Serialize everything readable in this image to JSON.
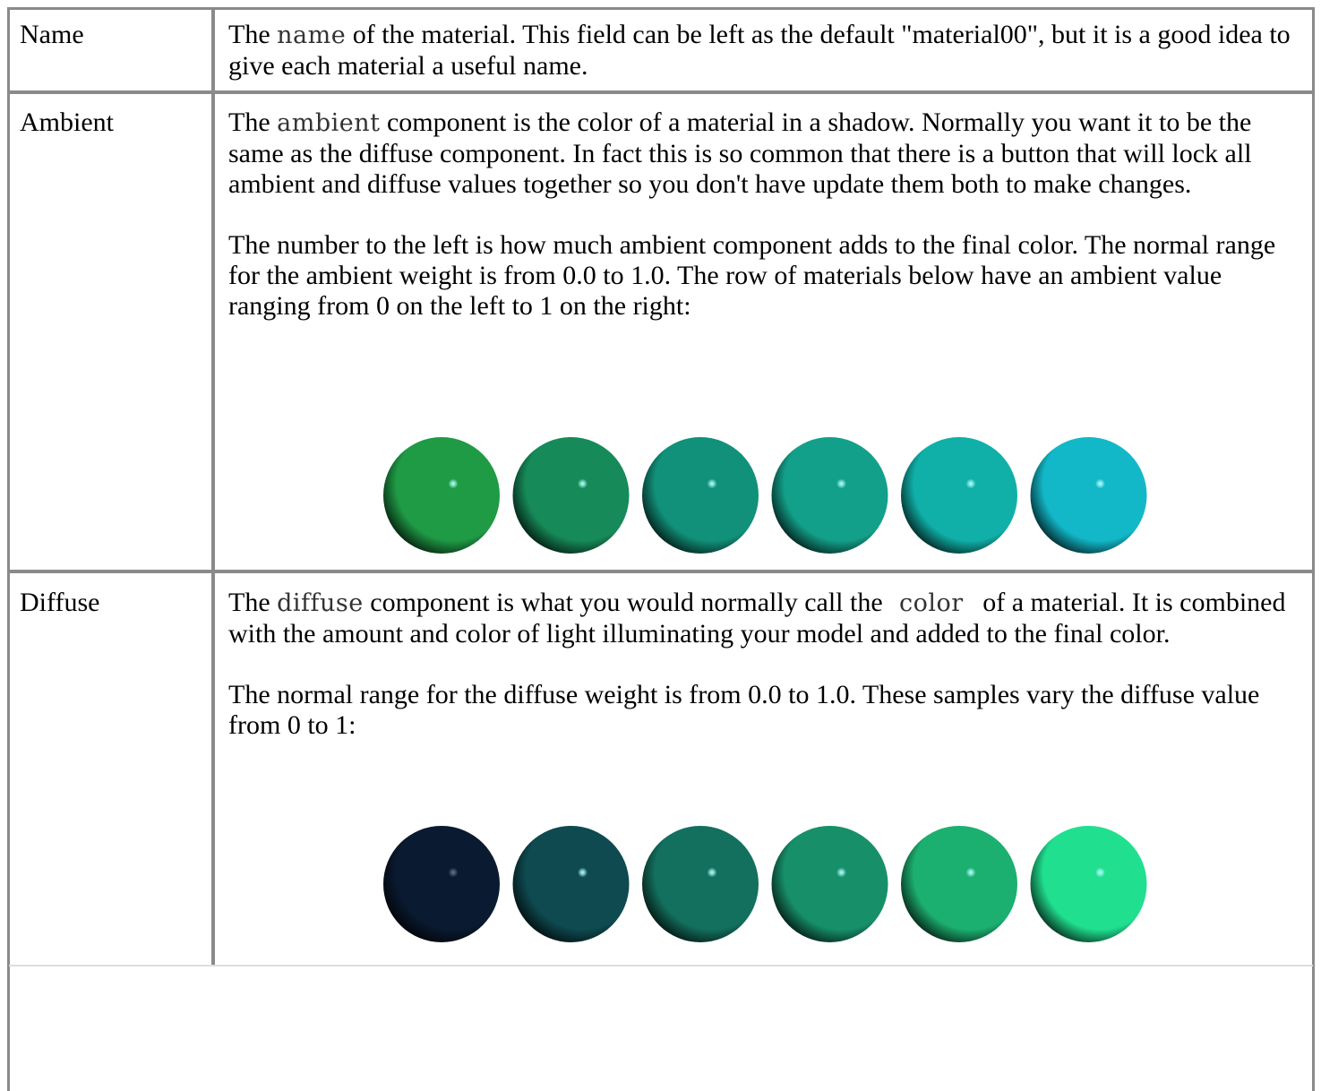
{
  "table": {
    "rows": [
      {
        "label": "Name",
        "paragraphs": [
          [
            "The ",
            "name",
            " of the material. This field can be left as the default \"material00\", but it is a good idea to give each material a useful name."
          ]
        ]
      },
      {
        "label": "Ambient",
        "paragraphs": [
          [
            "The ",
            "ambient",
            " component is the color of a material in a shadow. Normally you want it to be the same as the diffuse component. In fact this is so common that there is a button that will lock all ambient and diffuse values together so you don't have update them both to make changes."
          ],
          [
            "The number to the left is how much ambient component adds to the final color. The normal range for the ambient weight is from 0.0 to 1.0. The row of materials below have an ambient value ranging from 0 on the left to 1 on the right:"
          ]
        ]
      },
      {
        "label": "Diffuse",
        "paragraphs": [
          [
            "The ",
            "diffuse",
            " component is what you would normally call the ",
            "color",
            "of a material. It is combined with the amount and color of light illuminating your model and added to the final color."
          ],
          [
            "The normal range for the diffuse weight is from 0.0 to 1.0. These samples vary the diffuse value from 0 to 1:"
          ]
        ]
      }
    ]
  }
}
